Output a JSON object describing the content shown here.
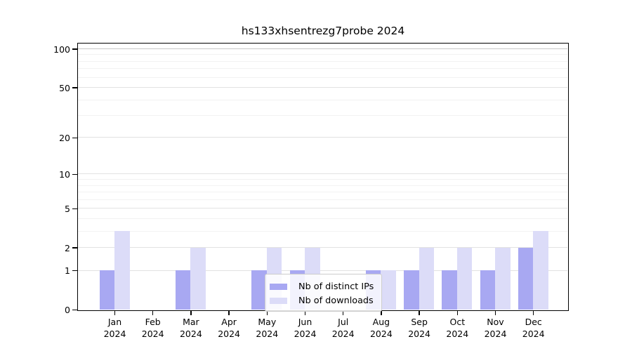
{
  "title": "hs133xhsentrezg7probe 2024",
  "legend": {
    "items": [
      {
        "label": "Nb of distinct IPs"
      },
      {
        "label": "Nb of downloads"
      }
    ]
  },
  "axis": {
    "y_major_ticks": [
      0,
      1,
      2,
      5,
      10,
      20,
      50,
      100
    ],
    "y_minor_ticks": [
      3,
      4,
      6,
      7,
      8,
      9,
      30,
      40,
      60,
      70,
      80,
      90
    ]
  },
  "colors": {
    "distinct_ips": "#a8a8f2",
    "downloads": "#dcdcf8",
    "grid_major": "#e2e2e2",
    "grid_minor": "#f2f2f2",
    "grid_top": "#c8c8c8",
    "axis": "#000000"
  },
  "chart_data": {
    "type": "bar",
    "title": "hs133xhsentrezg7probe 2024",
    "categories": [
      "Jan 2024",
      "Feb 2024",
      "Mar 2024",
      "Apr 2024",
      "May 2024",
      "Jun 2024",
      "Jul 2024",
      "Aug 2024",
      "Sep 2024",
      "Oct 2024",
      "Nov 2024",
      "Dec 2024"
    ],
    "series": [
      {
        "name": "Nb of distinct IPs",
        "values": [
          1,
          0,
          1,
          0,
          1,
          1,
          0,
          1,
          1,
          1,
          1,
          2
        ]
      },
      {
        "name": "Nb of downloads",
        "values": [
          3,
          0,
          2,
          0,
          2,
          2,
          0,
          1,
          2,
          2,
          2,
          3
        ]
      }
    ],
    "xlabel": "",
    "ylabel": "",
    "yscale": "log10(1+x)",
    "ylim": [
      0,
      112
    ],
    "yticks": [
      0,
      1,
      2,
      5,
      10,
      20,
      50,
      100
    ],
    "grid": "horizontal",
    "legend_position": "lower center"
  }
}
